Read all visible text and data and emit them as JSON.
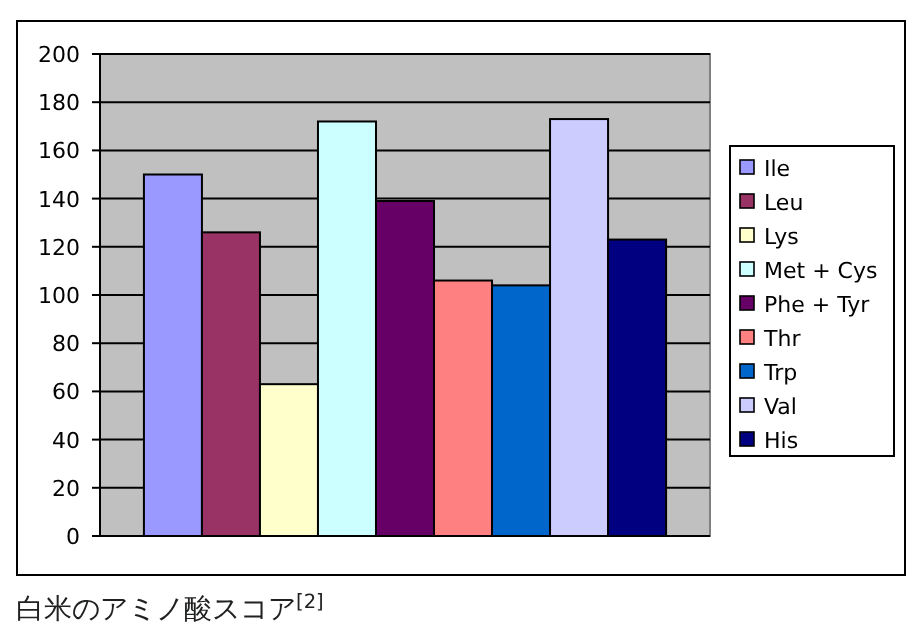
{
  "chart_data": {
    "type": "bar",
    "categories": [
      null
    ],
    "series": [
      {
        "name": "Ile",
        "color": "#9999ff",
        "values": [
          150
        ]
      },
      {
        "name": "Leu",
        "color": "#993366",
        "values": [
          126
        ]
      },
      {
        "name": "Lys",
        "color": "#ffffcc",
        "values": [
          63
        ]
      },
      {
        "name": "Met + Cys",
        "color": "#ccffff",
        "values": [
          172
        ]
      },
      {
        "name": "Phe + Tyr",
        "color": "#660066",
        "values": [
          139
        ]
      },
      {
        "name": "Thr",
        "color": "#ff8080",
        "values": [
          106
        ]
      },
      {
        "name": "Trp",
        "color": "#0066cc",
        "values": [
          104
        ]
      },
      {
        "name": "Val",
        "color": "#ccccff",
        "values": [
          173
        ]
      },
      {
        "name": "His",
        "color": "#000080",
        "values": [
          123
        ]
      }
    ],
    "ylim": [
      0,
      200
    ],
    "yticks": [
      0,
      20,
      40,
      60,
      80,
      100,
      120,
      140,
      160,
      180,
      200
    ],
    "grid": "y",
    "legend": "right",
    "tick_labels": "y",
    "annotations": [
      "白米のアミノ酸スコア$^{[2]}$"
    ]
  }
}
